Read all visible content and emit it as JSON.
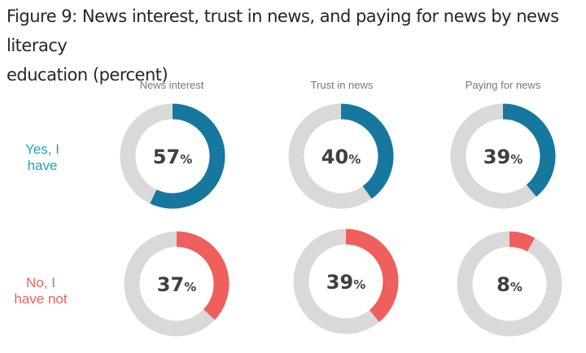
{
  "title_line1": "Figure 9: News interest, trust in news, and paying for news by news literacy",
  "title_line2": "education (percent)",
  "colors": {
    "track": "#d9d9d9",
    "yes": "#16789e",
    "no": "#ef5f5b",
    "yes_label": "#1aa3c2",
    "no_label": "#ef5f5b"
  },
  "chart_data": {
    "type": "donut",
    "title": "Figure 9: News interest, trust in news, and paying for news by news literacy education (percent)",
    "categories": [
      "News interest",
      "Trust in news",
      "Paying for news"
    ],
    "rows": [
      {
        "key": "yes",
        "label_lines": [
          "Yes, I",
          "have"
        ],
        "values": [
          57,
          40,
          39
        ]
      },
      {
        "key": "no",
        "label_lines": [
          "No, I",
          "have not"
        ],
        "values": [
          37,
          39,
          8
        ]
      }
    ],
    "unit": "%",
    "max": 100
  }
}
